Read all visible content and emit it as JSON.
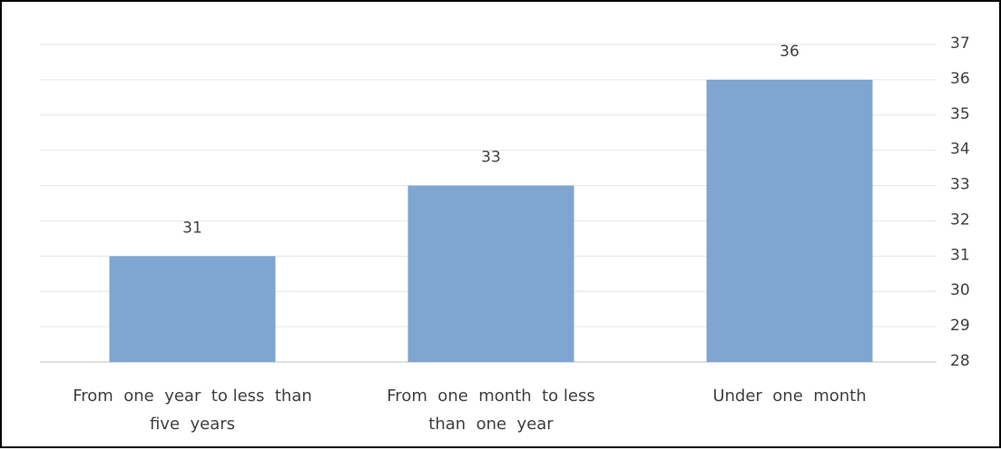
{
  "chart_data": {
    "type": "bar",
    "categories": [
      "From one year to less than five years",
      "From one month to less than one year",
      "Under one month"
    ],
    "category_lines": [
      [
        "From  one  year  to less  than",
        "five  years"
      ],
      [
        "From  one  month  to less",
        "than  one  year"
      ],
      [
        "Under  one  month"
      ]
    ],
    "values": [
      31,
      33,
      36
    ],
    "data_labels": [
      "31",
      "33",
      "36"
    ],
    "ylim": [
      28,
      37
    ],
    "yticks": [
      "28",
      "29",
      "30",
      "31",
      "32",
      "33",
      "34",
      "35",
      "36",
      "37"
    ],
    "y_axis_side": "right",
    "grid": true,
    "legend": "none",
    "title": "",
    "xlabel": "",
    "ylabel": "",
    "colors": {
      "bar": "#7fa5d1",
      "grid": "#e6e6e6",
      "axis": "#bfbfbf",
      "text": "#404040"
    }
  }
}
